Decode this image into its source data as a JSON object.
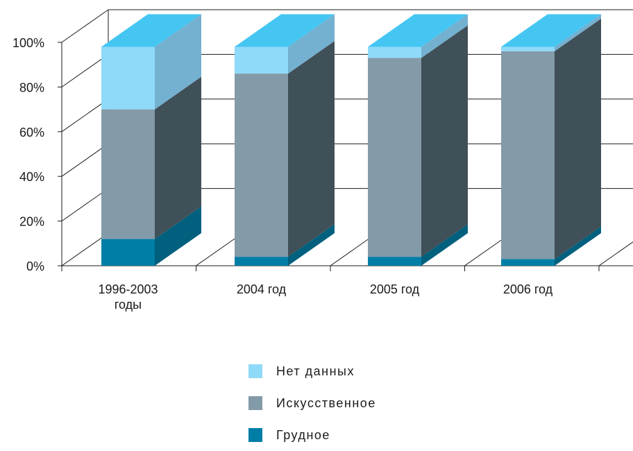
{
  "chart_data": {
    "type": "bar",
    "stacked": true,
    "three_d": true,
    "categories": [
      [
        "1996-2003",
        "годы"
      ],
      [
        "2004 год"
      ],
      [
        "2005 год"
      ],
      [
        "2006 год"
      ]
    ],
    "series": [
      {
        "name": "Грудное",
        "values": [
          12,
          4,
          4,
          3
        ],
        "color": "#007ea6"
      },
      {
        "name": "Искусственное",
        "values": [
          58,
          82,
          89,
          93
        ],
        "color": "#839ba8"
      },
      {
        "name": "Нет данных",
        "values": [
          28,
          12,
          5,
          2
        ],
        "color": "#8fdaf8"
      }
    ],
    "y_ticks": [
      "0%",
      "20%",
      "40%",
      "60%",
      "80%",
      "100%"
    ],
    "ylim": [
      0,
      100
    ],
    "grid": true,
    "legend_position": "bottom",
    "legend_order": [
      "Нет данных",
      "Искусственное",
      "Грудное"
    ],
    "colors": {
      "top_face": "#45c6f2",
      "side_dark": "#405058",
      "side_nodata": "#74b0d0",
      "side_breast": "#00607e",
      "grid": "#1a1a1a"
    }
  }
}
